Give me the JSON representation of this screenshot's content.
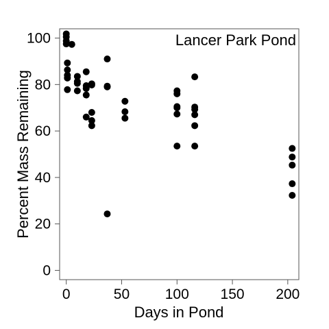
{
  "chart_data": {
    "type": "scatter",
    "annotation": "Lancer Park Pond",
    "xlabel": "Days in Pond",
    "ylabel": "Percent Mass Remaining",
    "xlim": [
      -6,
      210
    ],
    "ylim": [
      -4,
      104
    ],
    "xticks": [
      0,
      50,
      100,
      150,
      200
    ],
    "yticks": [
      0,
      20,
      40,
      60,
      80,
      100
    ],
    "grid": false,
    "marker_color": "#000000",
    "points": [
      {
        "x": 0,
        "y": 101.8
      },
      {
        "x": 0,
        "y": 100.5
      },
      {
        "x": 0,
        "y": 98.8
      },
      {
        "x": 0,
        "y": 97.5
      },
      {
        "x": 1,
        "y": 89.3
      },
      {
        "x": 1,
        "y": 86.3
      },
      {
        "x": 1,
        "y": 84.0
      },
      {
        "x": 1,
        "y": 82.8
      },
      {
        "x": 1,
        "y": 77.8
      },
      {
        "x": 5,
        "y": 97.3
      },
      {
        "x": 10,
        "y": 83.5
      },
      {
        "x": 10,
        "y": 81.3
      },
      {
        "x": 10,
        "y": 80.5
      },
      {
        "x": 10,
        "y": 77.3
      },
      {
        "x": 18,
        "y": 85.5
      },
      {
        "x": 18,
        "y": 79.5
      },
      {
        "x": 18,
        "y": 78.3
      },
      {
        "x": 18,
        "y": 75.5
      },
      {
        "x": 18,
        "y": 66.0
      },
      {
        "x": 23,
        "y": 80.3
      },
      {
        "x": 23,
        "y": 79.8
      },
      {
        "x": 23,
        "y": 68.0
      },
      {
        "x": 23,
        "y": 64.5
      },
      {
        "x": 23,
        "y": 62.3
      },
      {
        "x": 37,
        "y": 91.0
      },
      {
        "x": 37,
        "y": 79.3
      },
      {
        "x": 37,
        "y": 79.0
      },
      {
        "x": 37,
        "y": 24.3
      },
      {
        "x": 53,
        "y": 72.8
      },
      {
        "x": 53,
        "y": 68.3
      },
      {
        "x": 53,
        "y": 65.5
      },
      {
        "x": 100,
        "y": 77.3
      },
      {
        "x": 100,
        "y": 76.0
      },
      {
        "x": 100,
        "y": 70.5
      },
      {
        "x": 100,
        "y": 70.0
      },
      {
        "x": 100,
        "y": 67.3
      },
      {
        "x": 100,
        "y": 53.5
      },
      {
        "x": 116,
        "y": 83.3
      },
      {
        "x": 116,
        "y": 70.3
      },
      {
        "x": 116,
        "y": 69.3
      },
      {
        "x": 116,
        "y": 67.0
      },
      {
        "x": 116,
        "y": 62.3
      },
      {
        "x": 116,
        "y": 53.5
      },
      {
        "x": 204,
        "y": 52.5
      },
      {
        "x": 204,
        "y": 48.8
      },
      {
        "x": 204,
        "y": 45.3
      },
      {
        "x": 204,
        "y": 37.3
      },
      {
        "x": 204,
        "y": 32.3
      }
    ]
  }
}
